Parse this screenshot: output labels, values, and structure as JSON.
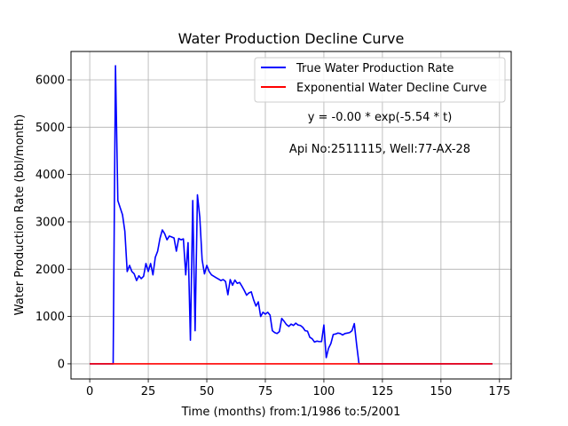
{
  "chart_data": {
    "type": "line",
    "title": "Water Production Decline Curve",
    "xlabel": "Time (months) from:1/1986 to:5/2001",
    "ylabel": "Water Production Rate (bbl/month)",
    "xlim": [
      -8,
      180
    ],
    "ylim": [
      -320,
      6600
    ],
    "xticks": [
      0,
      25,
      50,
      75,
      100,
      125,
      150,
      175
    ],
    "yticks": [
      0,
      1000,
      2000,
      3000,
      4000,
      5000,
      6000
    ],
    "grid": true,
    "legend_position": "top-right",
    "annotations": [
      "y = -0.00 * exp(-5.54 * t)",
      "Api No:2511115, Well:77-AX-28"
    ],
    "series": [
      {
        "name": "True Water Production Rate",
        "color": "#0000ff",
        "points": [
          [
            0,
            0
          ],
          [
            10,
            0
          ],
          [
            11,
            6300
          ],
          [
            12,
            3450
          ],
          [
            13,
            3300
          ],
          [
            14,
            3150
          ],
          [
            15,
            2800
          ],
          [
            16,
            1950
          ],
          [
            17,
            2080
          ],
          [
            18,
            1950
          ],
          [
            19,
            1900
          ],
          [
            20,
            1760
          ],
          [
            21,
            1860
          ],
          [
            22,
            1800
          ],
          [
            23,
            1850
          ],
          [
            24,
            2120
          ],
          [
            25,
            1950
          ],
          [
            26,
            2120
          ],
          [
            27,
            1880
          ],
          [
            28,
            2250
          ],
          [
            29,
            2380
          ],
          [
            30,
            2650
          ],
          [
            31,
            2830
          ],
          [
            32,
            2750
          ],
          [
            33,
            2620
          ],
          [
            34,
            2700
          ],
          [
            35,
            2680
          ],
          [
            36,
            2660
          ],
          [
            37,
            2380
          ],
          [
            38,
            2650
          ],
          [
            39,
            2620
          ],
          [
            40,
            2640
          ],
          [
            41,
            1880
          ],
          [
            42,
            2560
          ],
          [
            43,
            500
          ],
          [
            44,
            3450
          ],
          [
            45,
            700
          ],
          [
            46,
            3570
          ],
          [
            47,
            3100
          ],
          [
            48,
            2200
          ],
          [
            49,
            1900
          ],
          [
            50,
            2080
          ],
          [
            51,
            1950
          ],
          [
            52,
            1880
          ],
          [
            53,
            1850
          ],
          [
            54,
            1820
          ],
          [
            55,
            1790
          ],
          [
            56,
            1760
          ],
          [
            57,
            1780
          ],
          [
            58,
            1740
          ],
          [
            59,
            1460
          ],
          [
            60,
            1780
          ],
          [
            61,
            1660
          ],
          [
            62,
            1770
          ],
          [
            63,
            1700
          ],
          [
            64,
            1720
          ],
          [
            65,
            1640
          ],
          [
            66,
            1550
          ],
          [
            67,
            1450
          ],
          [
            68,
            1500
          ],
          [
            69,
            1520
          ],
          [
            70,
            1350
          ],
          [
            71,
            1220
          ],
          [
            72,
            1310
          ],
          [
            73,
            1000
          ],
          [
            74,
            1090
          ],
          [
            75,
            1050
          ],
          [
            76,
            1090
          ],
          [
            77,
            1030
          ],
          [
            78,
            700
          ],
          [
            79,
            660
          ],
          [
            80,
            640
          ],
          [
            81,
            680
          ],
          [
            82,
            960
          ],
          [
            83,
            900
          ],
          [
            84,
            830
          ],
          [
            85,
            790
          ],
          [
            86,
            840
          ],
          [
            87,
            810
          ],
          [
            88,
            860
          ],
          [
            89,
            820
          ],
          [
            90,
            810
          ],
          [
            91,
            770
          ],
          [
            92,
            700
          ],
          [
            93,
            690
          ],
          [
            94,
            560
          ],
          [
            95,
            530
          ],
          [
            96,
            460
          ],
          [
            97,
            480
          ],
          [
            98,
            470
          ],
          [
            99,
            470
          ],
          [
            100,
            820
          ],
          [
            101,
            130
          ],
          [
            102,
            330
          ],
          [
            103,
            430
          ],
          [
            104,
            620
          ],
          [
            105,
            630
          ],
          [
            106,
            650
          ],
          [
            107,
            640
          ],
          [
            108,
            610
          ],
          [
            109,
            640
          ],
          [
            110,
            650
          ],
          [
            111,
            660
          ],
          [
            112,
            700
          ],
          [
            113,
            850
          ],
          [
            114,
            400
          ],
          [
            115,
            0
          ],
          [
            172,
            0
          ]
        ]
      },
      {
        "name": "Exponential Water Decline Curve",
        "color": "#ff0000",
        "points": [
          [
            0,
            0
          ],
          [
            172,
            0
          ]
        ]
      }
    ]
  }
}
